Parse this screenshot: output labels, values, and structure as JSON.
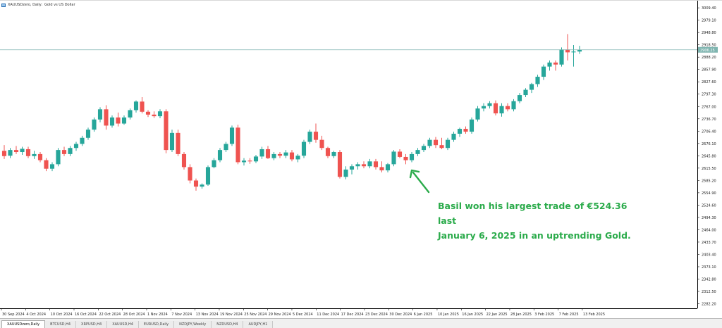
{
  "header": {
    "symbol_timeframe": "XAUUSDzero, Daily:",
    "description": "Gold vs US Dollar"
  },
  "chart_data": {
    "type": "candlestick",
    "y_axis": {
      "ticks": [
        "3009.40",
        "2979.10",
        "2948.80",
        "2918.50",
        "2888.20",
        "2857.90",
        "2827.60",
        "2797.30",
        "2767.00",
        "2736.70",
        "2706.40",
        "2676.10",
        "2645.80",
        "2615.50",
        "2585.20",
        "2554.90",
        "2524.60",
        "2494.30",
        "2464.00",
        "2433.70",
        "2403.40",
        "2373.10",
        "2342.80",
        "2312.50",
        "2282.20"
      ],
      "range": [
        2271,
        3020
      ]
    },
    "x_axis": {
      "ticks": [
        "30 Sep 2024",
        "4 Oct 2024",
        "10 Oct 2024",
        "16 Oct 2024",
        "22 Oct 2024",
        "28 Oct 2024",
        "1 Nov 2024",
        "7 Nov 2024",
        "13 Nov 2024",
        "19 Nov 2024",
        "25 Nov 2024",
        "29 Nov 2024",
        "5 Dec 2024",
        "11 Dec 2024",
        "17 Dec 2024",
        "23 Dec 2024",
        "30 Dec 2024",
        "6 Jan 2025",
        "10 Jan 2025",
        "16 Jan 2025",
        "22 Jan 2025",
        "28 Jan 2025",
        "3 Feb 2025",
        "7 Feb 2025",
        "13 Feb 2025"
      ]
    },
    "current_price": "2906.25",
    "current_price_value": 2906.25,
    "colors": {
      "up": "#26a69a",
      "down": "#ef5350",
      "price_line": "#7fb5b0",
      "arrow": "#2bab4b"
    },
    "candles": [
      {
        "o": 2658,
        "h": 2672,
        "l": 2638,
        "c": 2645
      },
      {
        "o": 2646,
        "h": 2665,
        "l": 2640,
        "c": 2660
      },
      {
        "o": 2660,
        "h": 2670,
        "l": 2650,
        "c": 2655
      },
      {
        "o": 2655,
        "h": 2668,
        "l": 2648,
        "c": 2663
      },
      {
        "o": 2662,
        "h": 2668,
        "l": 2640,
        "c": 2645
      },
      {
        "o": 2645,
        "h": 2658,
        "l": 2638,
        "c": 2650
      },
      {
        "o": 2650,
        "h": 2655,
        "l": 2630,
        "c": 2635
      },
      {
        "o": 2635,
        "h": 2640,
        "l": 2608,
        "c": 2614
      },
      {
        "o": 2614,
        "h": 2630,
        "l": 2608,
        "c": 2625
      },
      {
        "o": 2625,
        "h": 2665,
        "l": 2620,
        "c": 2660
      },
      {
        "o": 2660,
        "h": 2668,
        "l": 2645,
        "c": 2650
      },
      {
        "o": 2650,
        "h": 2670,
        "l": 2645,
        "c": 2665
      },
      {
        "o": 2665,
        "h": 2680,
        "l": 2658,
        "c": 2675
      },
      {
        "o": 2675,
        "h": 2695,
        "l": 2670,
        "c": 2690
      },
      {
        "o": 2690,
        "h": 2715,
        "l": 2685,
        "c": 2710
      },
      {
        "o": 2710,
        "h": 2740,
        "l": 2705,
        "c": 2735
      },
      {
        "o": 2735,
        "h": 2765,
        "l": 2728,
        "c": 2760
      },
      {
        "o": 2760,
        "h": 2770,
        "l": 2710,
        "c": 2720
      },
      {
        "o": 2720,
        "h": 2745,
        "l": 2715,
        "c": 2740
      },
      {
        "o": 2740,
        "h": 2752,
        "l": 2718,
        "c": 2725
      },
      {
        "o": 2725,
        "h": 2745,
        "l": 2722,
        "c": 2740
      },
      {
        "o": 2740,
        "h": 2762,
        "l": 2735,
        "c": 2758
      },
      {
        "o": 2758,
        "h": 2782,
        "l": 2752,
        "c": 2779
      },
      {
        "o": 2779,
        "h": 2790,
        "l": 2750,
        "c": 2754
      },
      {
        "o": 2754,
        "h": 2758,
        "l": 2741,
        "c": 2747
      },
      {
        "o": 2747,
        "h": 2755,
        "l": 2739,
        "c": 2743
      },
      {
        "o": 2743,
        "h": 2760,
        "l": 2738,
        "c": 2755
      },
      {
        "o": 2755,
        "h": 2760,
        "l": 2652,
        "c": 2660
      },
      {
        "o": 2660,
        "h": 2710,
        "l": 2655,
        "c": 2702
      },
      {
        "o": 2702,
        "h": 2710,
        "l": 2645,
        "c": 2650
      },
      {
        "o": 2650,
        "h": 2655,
        "l": 2612,
        "c": 2618
      },
      {
        "o": 2618,
        "h": 2625,
        "l": 2578,
        "c": 2585
      },
      {
        "o": 2585,
        "h": 2590,
        "l": 2560,
        "c": 2570
      },
      {
        "o": 2570,
        "h": 2578,
        "l": 2565,
        "c": 2575
      },
      {
        "o": 2575,
        "h": 2622,
        "l": 2572,
        "c": 2618
      },
      {
        "o": 2618,
        "h": 2640,
        "l": 2615,
        "c": 2635
      },
      {
        "o": 2635,
        "h": 2665,
        "l": 2630,
        "c": 2660
      },
      {
        "o": 2660,
        "h": 2680,
        "l": 2655,
        "c": 2675
      },
      {
        "o": 2675,
        "h": 2720,
        "l": 2670,
        "c": 2715
      },
      {
        "o": 2715,
        "h": 2722,
        "l": 2625,
        "c": 2630
      },
      {
        "o": 2630,
        "h": 2640,
        "l": 2622,
        "c": 2634
      },
      {
        "o": 2634,
        "h": 2640,
        "l": 2626,
        "c": 2632
      },
      {
        "o": 2632,
        "h": 2648,
        "l": 2628,
        "c": 2644
      },
      {
        "o": 2644,
        "h": 2668,
        "l": 2638,
        "c": 2662
      },
      {
        "o": 2662,
        "h": 2670,
        "l": 2638,
        "c": 2640
      },
      {
        "o": 2640,
        "h": 2655,
        "l": 2635,
        "c": 2650
      },
      {
        "o": 2650,
        "h": 2655,
        "l": 2640,
        "c": 2646
      },
      {
        "o": 2646,
        "h": 2660,
        "l": 2640,
        "c": 2654
      },
      {
        "o": 2654,
        "h": 2660,
        "l": 2632,
        "c": 2637
      },
      {
        "o": 2637,
        "h": 2650,
        "l": 2630,
        "c": 2646
      },
      {
        "o": 2646,
        "h": 2685,
        "l": 2640,
        "c": 2680
      },
      {
        "o": 2680,
        "h": 2710,
        "l": 2675,
        "c": 2705
      },
      {
        "o": 2705,
        "h": 2725,
        "l": 2678,
        "c": 2685
      },
      {
        "o": 2685,
        "h": 2695,
        "l": 2660,
        "c": 2665
      },
      {
        "o": 2665,
        "h": 2668,
        "l": 2640,
        "c": 2645
      },
      {
        "o": 2645,
        "h": 2658,
        "l": 2640,
        "c": 2655
      },
      {
        "o": 2655,
        "h": 2660,
        "l": 2590,
        "c": 2594
      },
      {
        "o": 2594,
        "h": 2620,
        "l": 2588,
        "c": 2612
      },
      {
        "o": 2612,
        "h": 2625,
        "l": 2600,
        "c": 2620
      },
      {
        "o": 2620,
        "h": 2630,
        "l": 2612,
        "c": 2625
      },
      {
        "o": 2625,
        "h": 2632,
        "l": 2615,
        "c": 2620
      },
      {
        "o": 2620,
        "h": 2638,
        "l": 2615,
        "c": 2632
      },
      {
        "o": 2632,
        "h": 2638,
        "l": 2612,
        "c": 2618
      },
      {
        "o": 2618,
        "h": 2632,
        "l": 2605,
        "c": 2610
      },
      {
        "o": 2610,
        "h": 2628,
        "l": 2605,
        "c": 2625
      },
      {
        "o": 2625,
        "h": 2660,
        "l": 2620,
        "c": 2656
      },
      {
        "o": 2656,
        "h": 2662,
        "l": 2640,
        "c": 2643
      },
      {
        "o": 2643,
        "h": 2650,
        "l": 2625,
        "c": 2635
      },
      {
        "o": 2635,
        "h": 2655,
        "l": 2630,
        "c": 2650
      },
      {
        "o": 2650,
        "h": 2665,
        "l": 2645,
        "c": 2660
      },
      {
        "o": 2660,
        "h": 2675,
        "l": 2655,
        "c": 2670
      },
      {
        "o": 2670,
        "h": 2690,
        "l": 2665,
        "c": 2685
      },
      {
        "o": 2685,
        "h": 2692,
        "l": 2665,
        "c": 2672
      },
      {
        "o": 2672,
        "h": 2690,
        "l": 2662,
        "c": 2665
      },
      {
        "o": 2665,
        "h": 2690,
        "l": 2660,
        "c": 2685
      },
      {
        "o": 2685,
        "h": 2705,
        "l": 2680,
        "c": 2700
      },
      {
        "o": 2700,
        "h": 2715,
        "l": 2692,
        "c": 2712
      },
      {
        "o": 2712,
        "h": 2718,
        "l": 2700,
        "c": 2705
      },
      {
        "o": 2705,
        "h": 2740,
        "l": 2700,
        "c": 2735
      },
      {
        "o": 2735,
        "h": 2768,
        "l": 2730,
        "c": 2762
      },
      {
        "o": 2762,
        "h": 2775,
        "l": 2755,
        "c": 2768
      },
      {
        "o": 2768,
        "h": 2780,
        "l": 2762,
        "c": 2775
      },
      {
        "o": 2775,
        "h": 2782,
        "l": 2745,
        "c": 2750
      },
      {
        "o": 2750,
        "h": 2775,
        "l": 2742,
        "c": 2768
      },
      {
        "o": 2768,
        "h": 2775,
        "l": 2755,
        "c": 2760
      },
      {
        "o": 2760,
        "h": 2785,
        "l": 2755,
        "c": 2780
      },
      {
        "o": 2780,
        "h": 2800,
        "l": 2775,
        "c": 2795
      },
      {
        "o": 2795,
        "h": 2812,
        "l": 2790,
        "c": 2808
      },
      {
        "o": 2808,
        "h": 2825,
        "l": 2800,
        "c": 2822
      },
      {
        "o": 2822,
        "h": 2845,
        "l": 2815,
        "c": 2840
      },
      {
        "o": 2840,
        "h": 2870,
        "l": 2832,
        "c": 2865
      },
      {
        "o": 2865,
        "h": 2880,
        "l": 2855,
        "c": 2875
      },
      {
        "o": 2875,
        "h": 2880,
        "l": 2855,
        "c": 2870
      },
      {
        "o": 2870,
        "h": 2912,
        "l": 2865,
        "c": 2907
      },
      {
        "o": 2907,
        "h": 2945,
        "l": 2880,
        "c": 2900
      },
      {
        "o": 2900,
        "h": 2918,
        "l": 2865,
        "c": 2902
      },
      {
        "o": 2902,
        "h": 2916,
        "l": 2896,
        "c": 2906
      }
    ]
  },
  "annotation": {
    "line1": "Basil won his largest trade of €524.36 last",
    "line2": "January 6, 2025 in an uptrending Gold."
  },
  "tabs": [
    {
      "label": "XAUUSDzero,Daily",
      "active": true
    },
    {
      "label": "BTCUSD,H4",
      "active": false
    },
    {
      "label": "XRPUSD,H4",
      "active": false
    },
    {
      "label": "XAUUSD,H4",
      "active": false
    },
    {
      "label": "EURUSD,Daily",
      "active": false
    },
    {
      "label": "NZDJPY,Weekly",
      "active": false
    },
    {
      "label": "NZDUSD,H4",
      "active": false
    },
    {
      "label": "AUDJPY,H1",
      "active": false
    }
  ]
}
